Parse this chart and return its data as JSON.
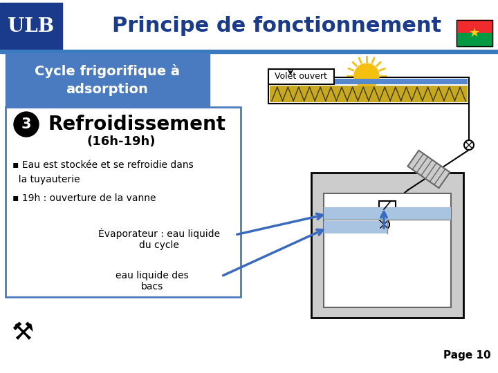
{
  "title": "Principe de fonctionnement",
  "ulb_text": "ULB",
  "ulb_bg": "#1a3a8c",
  "header_bg": "#ffffff",
  "header_line_color": "#3a7abf",
  "subtitle_bg": "#4a7abf",
  "subtitle_text": "Cycle frigorifique à\nadsorption",
  "subtitle_color": "#ffffff",
  "step_number": "3",
  "step_title": "Refroidissement",
  "step_subtitle": "(16h-19h)",
  "bullet1": "▪ Eau est stockée et se refroidie dans\n  la tuyauterie",
  "bullet2": "▪ 19h : ouverture de la vanne",
  "evap_label1": "Évaporateur : eau liquide\ndu cycle",
  "evap_label2": "eau liquide des\nbacs",
  "volet_text": "Volet ouvert",
  "page_text": "Page 10",
  "bg_color": "#ffffff",
  "title_color": "#1a3a8c",
  "left_box_border": "#4a7abf",
  "blue_arrow_color": "#3a6abf",
  "gray_box_color": "#cccccc",
  "light_blue": "#a8c4e0",
  "white": "#ffffff",
  "collector_fill": "#c8a820",
  "flag_red": "#ef2b2d",
  "flag_green": "#009a44",
  "flag_star": "#fcd116"
}
